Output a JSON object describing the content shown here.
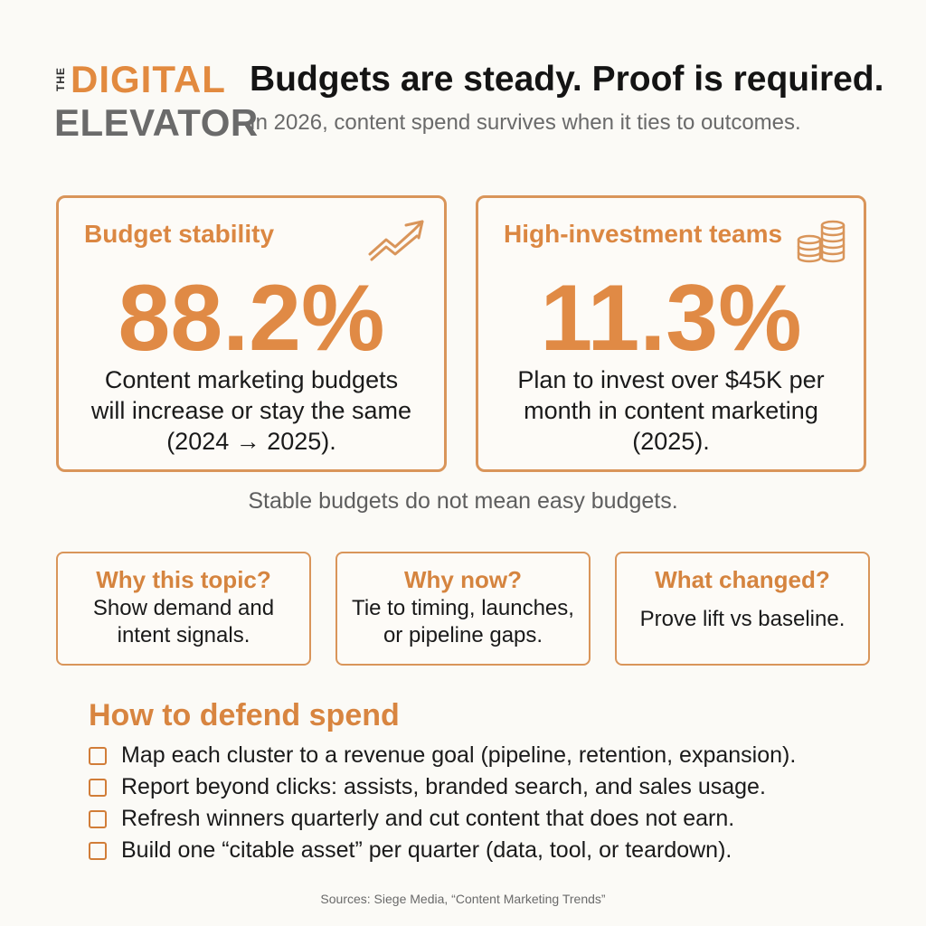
{
  "logo": {
    "the": "THE",
    "digital": "DIGITAL",
    "elevator": "ELEVATOR"
  },
  "header": {
    "headline": "Budgets are steady. Proof is required.",
    "subhead": "In 2026, content spend survives when it ties to outcomes."
  },
  "stats": [
    {
      "title": "Budget stability",
      "value": "88.2%",
      "desc_lines": [
        "Content marketing budgets",
        "will increase or stay the same",
        "(2024 → 2025)."
      ],
      "icon": "trend-up-arrow-icon"
    },
    {
      "title": "High-investment teams",
      "value": "11.3%",
      "desc_lines": [
        "Plan to invest over $45K per",
        "month in content marketing",
        "(2025)."
      ],
      "icon": "coin-stack-icon"
    }
  ],
  "note": "Stable budgets do not mean easy budgets.",
  "questions": [
    {
      "title": "Why this topic?",
      "lines": [
        "Show demand and",
        "intent signals."
      ]
    },
    {
      "title": "Why now?",
      "lines": [
        "Tie to timing, launches,",
        "or pipeline gaps."
      ]
    },
    {
      "title": "What changed?",
      "lines": [
        "Prove lift vs baseline."
      ]
    }
  ],
  "defend": {
    "title": "How to defend spend",
    "items": [
      "Map each cluster to a revenue goal (pipeline, retention, expansion).",
      "Report beyond clicks: assists, branded search, and sales usage.",
      "Refresh winners quarterly and cut content that does not earn.",
      "Build one “citable asset” per quarter (data, tool, or teardown)."
    ]
  },
  "sources": "Sources: Siege Media, “Content Marketing Trends”",
  "colors": {
    "accent": "#e08a45",
    "border": "#d9955a",
    "background": "#fbfaf6",
    "muted": "#6a6a6a"
  }
}
